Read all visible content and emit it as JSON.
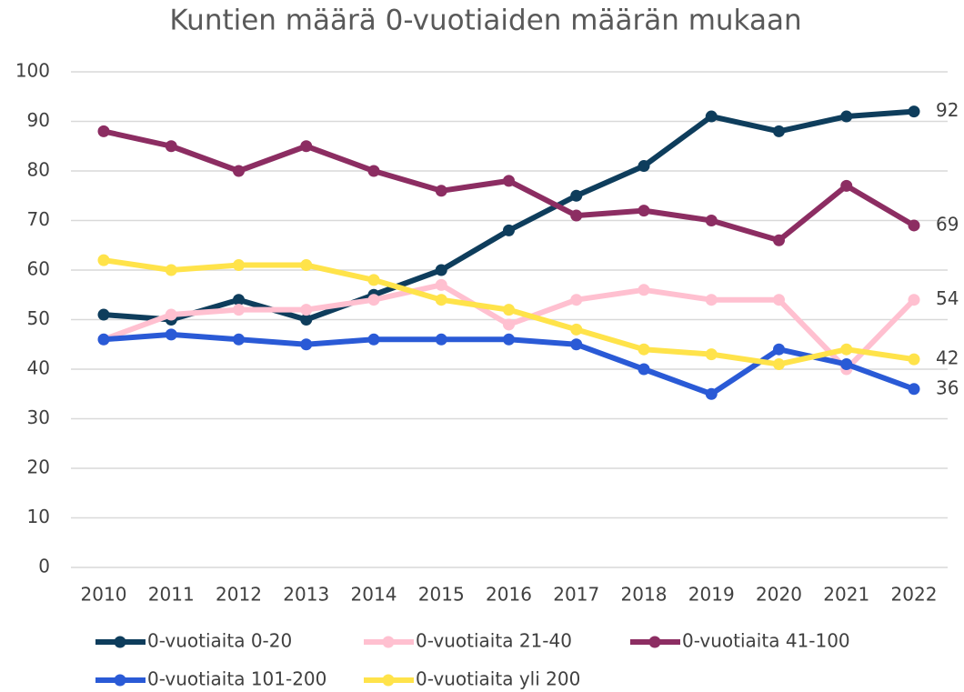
{
  "chart_data": {
    "type": "line",
    "title": "Kuntien määrä 0-vuotiaiden määrän mukaan",
    "categories": [
      "2010",
      "2011",
      "2012",
      "2013",
      "2014",
      "2015",
      "2016",
      "2017",
      "2018",
      "2019",
      "2020",
      "2021",
      "2022"
    ],
    "ylim": [
      0,
      100
    ],
    "yticks": [
      0,
      10,
      20,
      30,
      40,
      50,
      60,
      70,
      80,
      90,
      100
    ],
    "grid": true,
    "legend": "bottom",
    "series": [
      {
        "name": "0-vuotiaita 0-20",
        "color": "#0e3d5c",
        "values": [
          51,
          50,
          54,
          50,
          55,
          60,
          68,
          75,
          81,
          91,
          88,
          91,
          92
        ]
      },
      {
        "name": "0-vuotiaita 21-40",
        "color": "#ffc0d0",
        "values": [
          46,
          51,
          52,
          52,
          54,
          57,
          49,
          54,
          56,
          54,
          54,
          40,
          54
        ]
      },
      {
        "name": "0-vuotiaita 41-100",
        "color": "#8c2d62",
        "values": [
          88,
          85,
          80,
          85,
          80,
          76,
          78,
          71,
          72,
          70,
          66,
          77,
          69
        ]
      },
      {
        "name": "0-vuotiaita 101-200",
        "color": "#2a5ad6",
        "values": [
          46,
          47,
          46,
          45,
          46,
          46,
          46,
          45,
          40,
          35,
          44,
          41,
          36
        ]
      },
      {
        "name": "0-vuotiaita yli 200",
        "color": "#ffe34a",
        "values": [
          62,
          60,
          61,
          61,
          58,
          54,
          52,
          48,
          44,
          43,
          41,
          44,
          42
        ]
      }
    ]
  }
}
